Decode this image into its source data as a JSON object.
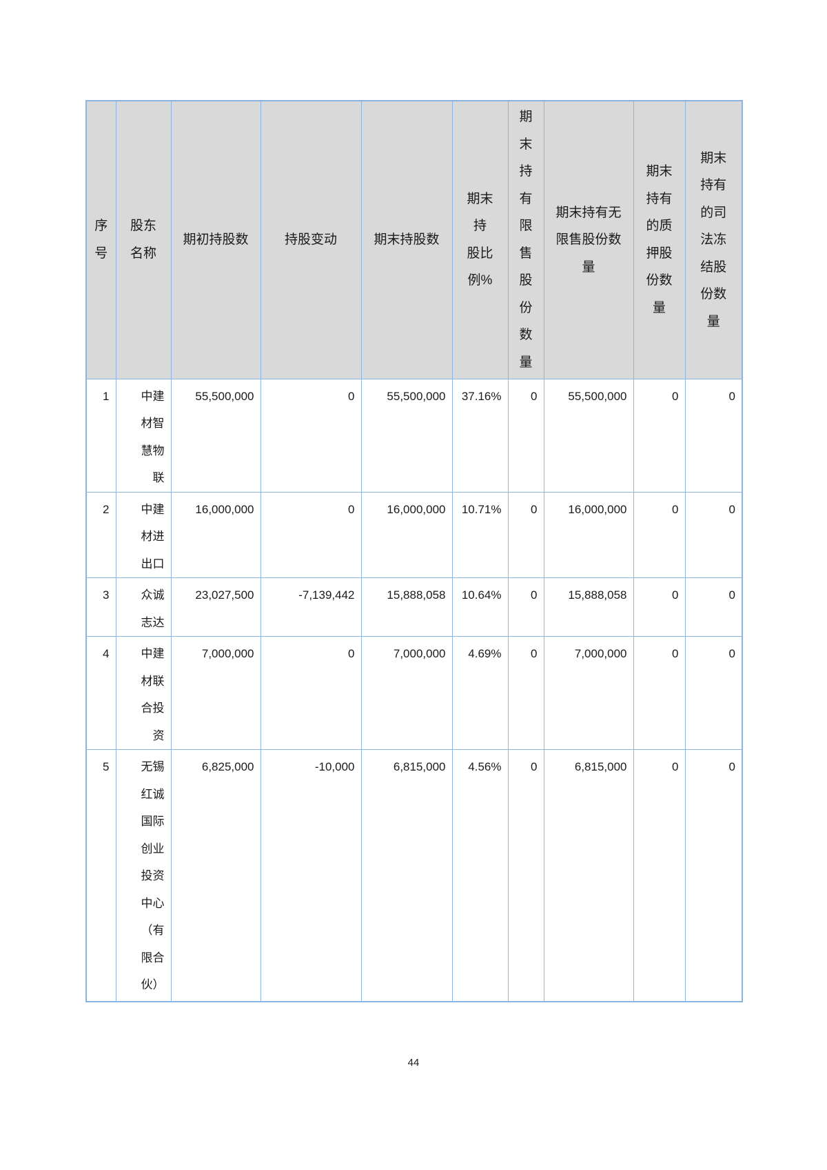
{
  "document": {
    "page_number": "44"
  },
  "colors": {
    "border": "#8db3e2",
    "header_bg": "#d9d9d9",
    "text": "#1a1a1a",
    "page_bg": "#ffffff"
  },
  "table": {
    "columns": [
      {
        "key": "seq",
        "label": "序号",
        "lines": [
          "序",
          "号"
        ]
      },
      {
        "key": "shareholder_name",
        "label": "股东名称",
        "lines": [
          "股东",
          "名称"
        ]
      },
      {
        "key": "shares_begin",
        "label": "期初持股数",
        "lines": [
          "期初持股数"
        ]
      },
      {
        "key": "share_change",
        "label": "持股变动",
        "lines": [
          "持股变动"
        ]
      },
      {
        "key": "shares_end",
        "label": "期末持股数",
        "lines": [
          "期末持股数"
        ]
      },
      {
        "key": "end_ratio",
        "label": "期末持股比例%",
        "lines": [
          "期末",
          "持",
          "股比",
          "例%"
        ]
      },
      {
        "key": "end_restricted",
        "label": "期末持有限售股份数量",
        "lines": [
          "期",
          "末",
          "持",
          "有",
          "限",
          "售",
          "股",
          "份",
          "数",
          "量"
        ]
      },
      {
        "key": "end_unrestricted",
        "label": "期末持有无限售股份数量",
        "lines": [
          "期末持有无",
          "限售股份数",
          "量"
        ]
      },
      {
        "key": "end_pledged",
        "label": "期末持有的质押股份数量",
        "lines": [
          "期末",
          "持有",
          "的质",
          "押股",
          "份数",
          "量"
        ]
      },
      {
        "key": "end_frozen",
        "label": "期末持有的司法冻结股份数量",
        "lines": [
          "期末",
          "持有",
          "的司",
          "法冻",
          "结股",
          "份数",
          "量"
        ]
      }
    ],
    "rows": [
      {
        "seq": "1",
        "name": "中建材智慧物联",
        "shares_begin": "55,500,000",
        "share_change": "0",
        "shares_end": "55,500,000",
        "end_ratio": "37.16%",
        "end_restricted": "0",
        "end_unrestricted": "55,500,000",
        "end_pledged": "0",
        "end_frozen": "0"
      },
      {
        "seq": "2",
        "name": "中建材进出口",
        "shares_begin": "16,000,000",
        "share_change": "0",
        "shares_end": "16,000,000",
        "end_ratio": "10.71%",
        "end_restricted": "0",
        "end_unrestricted": "16,000,000",
        "end_pledged": "0",
        "end_frozen": "0"
      },
      {
        "seq": "3",
        "name": "众诚志达",
        "shares_begin": "23,027,500",
        "share_change": "-7,139,442",
        "shares_end": "15,888,058",
        "end_ratio": "10.64%",
        "end_restricted": "0",
        "end_unrestricted": "15,888,058",
        "end_pledged": "0",
        "end_frozen": "0"
      },
      {
        "seq": "4",
        "name": "中建材联合投资",
        "shares_begin": "7,000,000",
        "share_change": "0",
        "shares_end": "7,000,000",
        "end_ratio": "4.69%",
        "end_restricted": "0",
        "end_unrestricted": "7,000,000",
        "end_pledged": "0",
        "end_frozen": "0"
      },
      {
        "seq": "5",
        "name": "无锡红诚国际创业投资中心（有限合伙）",
        "shares_begin": "6,825,000",
        "share_change": "-10,000",
        "shares_end": "6,815,000",
        "end_ratio": "4.56%",
        "end_restricted": "0",
        "end_unrestricted": "6,815,000",
        "end_pledged": "0",
        "end_frozen": "0"
      }
    ]
  }
}
